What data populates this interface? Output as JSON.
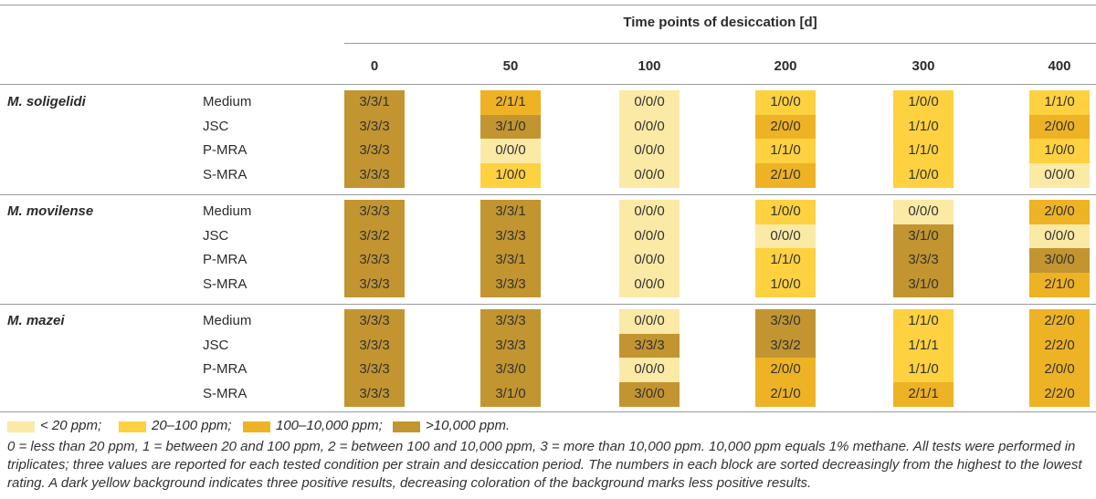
{
  "title": "Time points of desiccation [d]",
  "time_points": [
    "0",
    "50",
    "100",
    "200",
    "300",
    "400"
  ],
  "colors": {
    "lt20": "#fbe9a6",
    "20to100": "#fdd140",
    "100to10000": "#eeb225",
    "gt10000": "#c29530",
    "rule": "#9a9a9a"
  },
  "strains": [
    {
      "name": "M. soligelidi",
      "rows": [
        {
          "condition": "Medium",
          "values": [
            "3/3/1",
            "2/1/1",
            "0/0/0",
            "1/0/0",
            "1/0/0",
            "1/1/0"
          ],
          "levels": [
            "gt10000",
            "100to10000",
            "lt20",
            "20to100",
            "20to100",
            "20to100"
          ]
        },
        {
          "condition": "JSC",
          "values": [
            "3/3/3",
            "3/1/0",
            "0/0/0",
            "2/0/0",
            "1/1/0",
            "2/0/0"
          ],
          "levels": [
            "gt10000",
            "gt10000",
            "lt20",
            "100to10000",
            "20to100",
            "100to10000"
          ]
        },
        {
          "condition": "P-MRA",
          "values": [
            "3/3/3",
            "0/0/0",
            "0/0/0",
            "1/1/0",
            "1/1/0",
            "1/0/0"
          ],
          "levels": [
            "gt10000",
            "lt20",
            "lt20",
            "20to100",
            "20to100",
            "20to100"
          ]
        },
        {
          "condition": "S-MRA",
          "values": [
            "3/3/3",
            "1/0/0",
            "0/0/0",
            "2/1/0",
            "1/0/0",
            "0/0/0"
          ],
          "levels": [
            "gt10000",
            "20to100",
            "lt20",
            "100to10000",
            "20to100",
            "lt20"
          ]
        }
      ]
    },
    {
      "name": "M. movilense",
      "rows": [
        {
          "condition": "Medium",
          "values": [
            "3/3/3",
            "3/3/1",
            "0/0/0",
            "1/0/0",
            "0/0/0",
            "2/0/0"
          ],
          "levels": [
            "gt10000",
            "gt10000",
            "lt20",
            "20to100",
            "lt20",
            "100to10000"
          ]
        },
        {
          "condition": "JSC",
          "values": [
            "3/3/2",
            "3/3/3",
            "0/0/0",
            "0/0/0",
            "3/1/0",
            "0/0/0"
          ],
          "levels": [
            "gt10000",
            "gt10000",
            "lt20",
            "lt20",
            "gt10000",
            "lt20"
          ]
        },
        {
          "condition": "P-MRA",
          "values": [
            "3/3/3",
            "3/3/1",
            "0/0/0",
            "1/1/0",
            "3/3/3",
            "3/0/0"
          ],
          "levels": [
            "gt10000",
            "gt10000",
            "lt20",
            "20to100",
            "gt10000",
            "gt10000"
          ]
        },
        {
          "condition": "S-MRA",
          "values": [
            "3/3/3",
            "3/3/3",
            "0/0/0",
            "1/0/0",
            "3/1/0",
            "2/1/0"
          ],
          "levels": [
            "gt10000",
            "gt10000",
            "lt20",
            "20to100",
            "gt10000",
            "100to10000"
          ]
        }
      ]
    },
    {
      "name": "M. mazei",
      "rows": [
        {
          "condition": "Medium",
          "values": [
            "3/3/3",
            "3/3/3",
            "0/0/0",
            "3/3/0",
            "1/1/0",
            "2/2/0"
          ],
          "levels": [
            "gt10000",
            "gt10000",
            "lt20",
            "gt10000",
            "20to100",
            "100to10000"
          ]
        },
        {
          "condition": "JSC",
          "values": [
            "3/3/3",
            "3/3/3",
            "3/3/3",
            "3/3/2",
            "1/1/1",
            "2/2/0"
          ],
          "levels": [
            "gt10000",
            "gt10000",
            "gt10000",
            "gt10000",
            "20to100",
            "100to10000"
          ]
        },
        {
          "condition": "P-MRA",
          "values": [
            "3/3/3",
            "3/3/0",
            "0/0/0",
            "2/0/0",
            "1/1/0",
            "2/0/0"
          ],
          "levels": [
            "gt10000",
            "gt10000",
            "lt20",
            "100to10000",
            "20to100",
            "100to10000"
          ]
        },
        {
          "condition": "S-MRA",
          "values": [
            "3/3/3",
            "3/1/0",
            "3/0/0",
            "2/1/0",
            "2/1/1",
            "2/2/0"
          ],
          "levels": [
            "gt10000",
            "gt10000",
            "gt10000",
            "100to10000",
            "100to10000",
            "100to10000"
          ]
        }
      ]
    }
  ],
  "legend": [
    {
      "level": "lt20",
      "label": "< 20 ppm;"
    },
    {
      "level": "20to100",
      "label": "20–100 ppm;"
    },
    {
      "level": "100to10000",
      "label": "100–10,000 ppm;"
    },
    {
      "level": "gt10000",
      "label": ">10,000 ppm."
    }
  ],
  "footnote": "0 = less than 20 ppm, 1 = between 20 and 100 ppm, 2 = between 100 and 10,000 ppm, 3 = more than 10,000 ppm. 10,000 ppm equals 1% methane. All tests were performed in triplicates; three values are reported for each tested condition per strain and desiccation period. The numbers in each block are sorted decreasingly from the highest to the lowest rating. A dark yellow background indicates three positive results, decreasing coloration of the background marks less positive results."
}
